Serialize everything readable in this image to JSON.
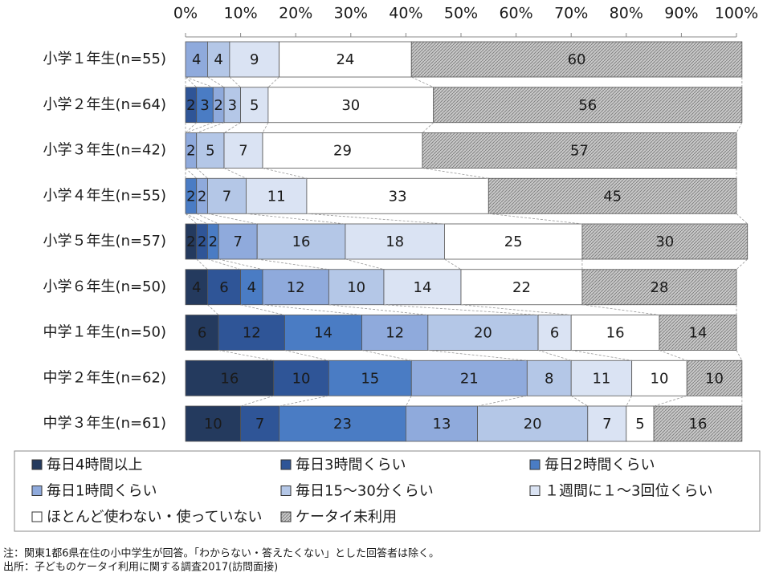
{
  "chart_data": {
    "type": "stacked-barh",
    "categories": [
      "小学１年生(n=55)",
      "小学２年生(n=64)",
      "小学３年生(n=42)",
      "小学４年生(n=55)",
      "小学５年生(n=57)",
      "小学６年生(n=50)",
      "中学１年生(n=50)",
      "中学２年生(n=62)",
      "中学３年生(n=61)"
    ],
    "series": [
      {
        "name": "毎日4時間以上",
        "color": "#243a5e",
        "values": [
          0,
          0,
          0,
          0,
          2,
          4,
          6,
          16,
          10
        ]
      },
      {
        "name": "毎日3時間くらい",
        "color": "#2f5597",
        "values": [
          0,
          2,
          0,
          0,
          2,
          6,
          12,
          10,
          7
        ]
      },
      {
        "name": "毎日2時間くらい",
        "color": "#4a7cc4",
        "values": [
          0,
          3,
          0,
          2,
          2,
          4,
          14,
          15,
          23
        ]
      },
      {
        "name": "毎日1時間くらい",
        "color": "#8faadc",
        "values": [
          4,
          2,
          2,
          2,
          7,
          12,
          12,
          21,
          13
        ]
      },
      {
        "name": "毎日15～30分くらい",
        "color": "#b4c7e7",
        "values": [
          4,
          3,
          5,
          7,
          16,
          10,
          20,
          8,
          20
        ]
      },
      {
        "name": "１週間に１～3回位くらい",
        "color": "#dae3f3",
        "values": [
          9,
          5,
          7,
          11,
          18,
          14,
          6,
          11,
          7
        ]
      },
      {
        "name": "ほとんど使わない・使っていない",
        "color": "#ffffff",
        "values": [
          24,
          30,
          29,
          33,
          25,
          22,
          16,
          10,
          5
        ]
      },
      {
        "name": "ケータイ未利用",
        "color": "#bfbfbf",
        "hatch": true,
        "values": [
          60,
          56,
          57,
          45,
          30,
          28,
          14,
          10,
          16
        ]
      }
    ],
    "xlim": [
      0,
      100
    ],
    "xticks": [
      {
        "value": 0,
        "label": "0%"
      },
      {
        "value": 10,
        "label": "10%"
      },
      {
        "value": 20,
        "label": "20%"
      },
      {
        "value": 30,
        "label": "30%"
      },
      {
        "value": 40,
        "label": "40%"
      },
      {
        "value": 50,
        "label": "50%"
      },
      {
        "value": 60,
        "label": "60%"
      },
      {
        "value": 70,
        "label": "70%"
      },
      {
        "value": 80,
        "label": "80%"
      },
      {
        "value": 90,
        "label": "90%"
      },
      {
        "value": 100,
        "label": "100%"
      }
    ],
    "notes": [
      "注：関東1都6県在住の小中学生が回答。「わからない・答えたくない」とした回答者は除く。",
      "出所：子どものケータイ利用に関する調査2017(訪問面接)"
    ]
  }
}
